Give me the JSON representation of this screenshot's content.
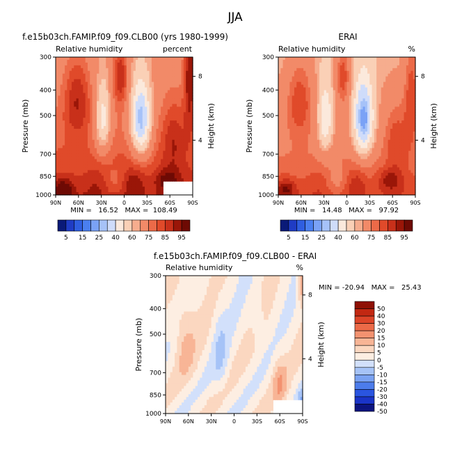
{
  "main_title": "JJA",
  "colors": {
    "full_field": [
      "#0a1a78",
      "#1f3cc4",
      "#2f5ee0",
      "#4a7ff0",
      "#7aa2f6",
      "#a6c2f8",
      "#cfdcfa",
      "#fbe9dc",
      "#fad0b6",
      "#f6ad8e",
      "#f28a68",
      "#ec6a48",
      "#e04a2a",
      "#c8301a",
      "#9a1608",
      "#6e0a04"
    ],
    "diff_field": [
      "#0c1480",
      "#1a34c8",
      "#2a55e0",
      "#4c7ceb",
      "#7aa2f2",
      "#a6c3f7",
      "#d2e0fb",
      "#fdeee2",
      "#fbd7c0",
      "#f8b596",
      "#f39270",
      "#ec6a48",
      "#dc4428",
      "#c22812",
      "#8e1004"
    ]
  },
  "chart_data": [
    {
      "type": "heatmap",
      "panel": "model",
      "title": "f.e15b03ch.FAMIP.f09_f09.CLB00 (yrs 1980-1999)",
      "subtitle_left": "Relative humidity",
      "subtitle_right": "percent",
      "xlabel": "",
      "ylabel": "Pressure (mb)",
      "y2label": "Height (km)",
      "x_ticks": [
        "90N",
        "60N",
        "30N",
        "0",
        "30S",
        "60S",
        "90S"
      ],
      "y_ticks": [
        "300",
        "400",
        "500",
        "700",
        "850",
        "1000"
      ],
      "y2_ticks": [
        "8",
        "4"
      ],
      "stats_text": "MIN =   16.52   MAX =  108.49",
      "min": 16.52,
      "max": 108.49,
      "colorbar_labels": [
        "5",
        "15",
        "25",
        "40",
        "60",
        "75",
        "85",
        "95"
      ],
      "colorbar_orientation": "horizontal"
    },
    {
      "type": "heatmap",
      "panel": "reanalysis",
      "title": "ERAI",
      "subtitle_left": "Relative humidity",
      "subtitle_right": "%",
      "xlabel": "",
      "ylabel": "Pressure (mb)",
      "y2label": "Height (km)",
      "x_ticks": [
        "90N",
        "60N",
        "30N",
        "0",
        "30S",
        "60S",
        "90S"
      ],
      "y_ticks": [
        "300",
        "400",
        "500",
        "700",
        "850",
        "1000"
      ],
      "y2_ticks": [
        "8",
        "4"
      ],
      "stats_text": "MIN =   14.48   MAX =   97.92",
      "min": 14.48,
      "max": 97.92,
      "colorbar_labels": [
        "5",
        "15",
        "25",
        "40",
        "60",
        "75",
        "85",
        "95"
      ],
      "colorbar_orientation": "horizontal"
    },
    {
      "type": "heatmap",
      "panel": "difference",
      "title": "f.e15b03ch.FAMIP.f09_f09.CLB00 - ERAI",
      "subtitle_left": "Relative humidity",
      "subtitle_right": "%",
      "xlabel": "",
      "ylabel": "Pressure (mb)",
      "y2label": "Height (km)",
      "x_ticks": [
        "90N",
        "60N",
        "30N",
        "0",
        "30S",
        "60S",
        "90S"
      ],
      "y_ticks": [
        "300",
        "400",
        "500",
        "700",
        "850",
        "1000"
      ],
      "y2_ticks": [
        "8",
        "4"
      ],
      "stats_text": "MIN = -20.94   MAX =   25.43",
      "min": -20.94,
      "max": 25.43,
      "colorbar_labels": [
        "50",
        "40",
        "30",
        "20",
        "15",
        "10",
        "5",
        "0",
        "-5",
        "-10",
        "-15",
        "-20",
        "-30",
        "-40",
        "-50"
      ],
      "colorbar_orientation": "vertical"
    }
  ]
}
